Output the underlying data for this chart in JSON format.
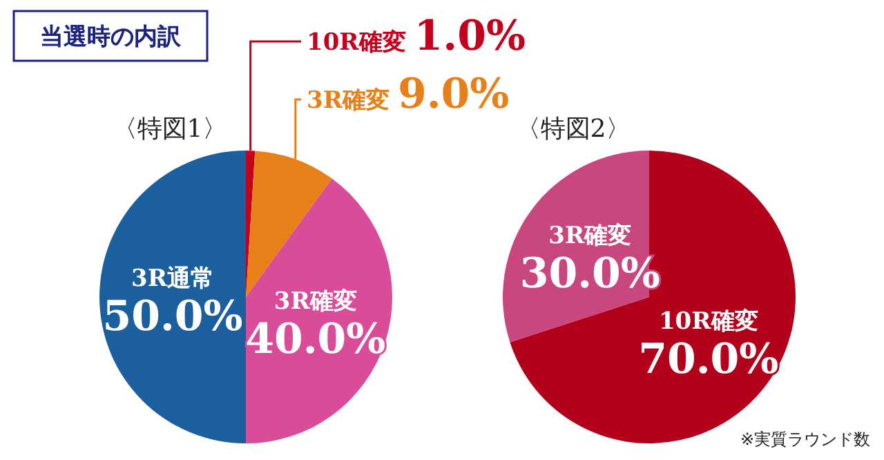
{
  "chart_data": [
    {
      "type": "pie",
      "title": "〈特図1〉",
      "subtitle": "当選時の内訳",
      "categories": [
        "10R確変",
        "3R確変",
        "3R確変",
        "3R通常"
      ],
      "values": [
        1.0,
        9.0,
        40.0,
        50.0
      ],
      "colors": [
        "#c4001c",
        "#e8801a",
        "#d94c98",
        "#1b5f9e"
      ],
      "value_labels": [
        "1.0%",
        "9.0%",
        "40.0%",
        "50.0%"
      ]
    },
    {
      "type": "pie",
      "title": "〈特図2〉",
      "categories": [
        "10R確変",
        "3R確変"
      ],
      "values": [
        70.0,
        30.0
      ],
      "colors": [
        "#b3001b",
        "#c9477f"
      ],
      "value_labels": [
        "70.0%",
        "30.0%"
      ],
      "annotations": [
        "※実質ラウンド数"
      ]
    }
  ]
}
